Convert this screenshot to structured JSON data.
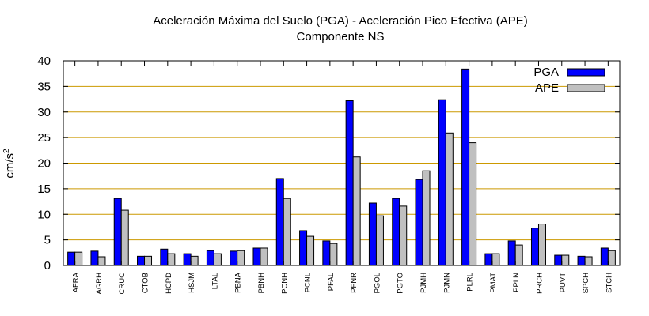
{
  "chart_data": {
    "type": "bar",
    "title": "Aceleración Máxima del Suelo (PGA) -  Aceleración Pico Efectiva (APE)",
    "subtitle": "Componente NS",
    "xlabel": "",
    "ylabel": "cm/s",
    "ylabel_superscript": "2",
    "ylim": [
      0,
      40
    ],
    "yticks": [
      0,
      5,
      10,
      15,
      20,
      25,
      30,
      35,
      40
    ],
    "grid": true,
    "legend_position": "top-right",
    "categories": [
      "AFRA",
      "AGRH",
      "CRUC",
      "CTOB",
      "HCPD",
      "HSJM",
      "LTAL",
      "PBNA",
      "PBNH",
      "PCNH",
      "PCNL",
      "PFAL",
      "PFNR",
      "PGOL",
      "PGTO",
      "PJMH",
      "PJMN",
      "PLRL",
      "PMAT",
      "PPLN",
      "PRCH",
      "PUVT",
      "SPCH",
      "STCH"
    ],
    "series": [
      {
        "name": "PGA",
        "color": "#0000ff",
        "values": [
          2.6,
          2.8,
          13.1,
          1.8,
          3.2,
          2.3,
          2.9,
          2.8,
          3.4,
          17.0,
          6.8,
          4.8,
          32.2,
          12.2,
          13.1,
          16.8,
          32.4,
          38.4,
          2.3,
          4.8,
          7.3,
          2.0,
          1.8,
          3.4
        ]
      },
      {
        "name": "APE",
        "color": "#c0c0c0",
        "values": [
          2.6,
          1.7,
          10.8,
          1.8,
          2.3,
          1.8,
          2.3,
          2.9,
          3.4,
          13.1,
          5.7,
          4.3,
          21.2,
          9.7,
          11.6,
          18.5,
          25.9,
          24.0,
          2.3,
          4.0,
          8.1,
          2.0,
          1.7,
          2.9
        ]
      }
    ],
    "gridline_color": "#cc9900"
  }
}
